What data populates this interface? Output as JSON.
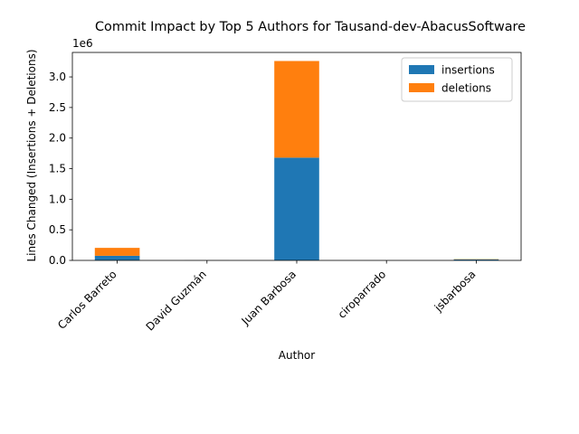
{
  "chart_data": {
    "type": "bar",
    "stacked": true,
    "title": "Commit Impact by Top 5 Authors for Tausand-dev-AbacusSoftware",
    "xlabel": "Author",
    "ylabel": "Lines Changed (Insertions + Deletions)",
    "y_offset_text": "1e6",
    "y_scale": 1000000,
    "ylim": [
      0,
      3400000
    ],
    "yticks": [
      0,
      500000,
      1000000,
      1500000,
      2000000,
      2500000,
      3000000
    ],
    "ytick_labels": [
      "0.0",
      "0.5",
      "1.0",
      "1.5",
      "2.0",
      "2.5",
      "3.0"
    ],
    "categories": [
      "Carlos Barreto",
      "David Guzmán",
      "Juan Barbosa",
      "ciroparrado",
      "jsbarbosa"
    ],
    "series": [
      {
        "name": "insertions",
        "color": "#1f77b4",
        "values": [
          75000,
          1000,
          1680000,
          500,
          15000
        ]
      },
      {
        "name": "deletions",
        "color": "#ff7f0e",
        "values": [
          130000,
          500,
          1580000,
          200,
          5000
        ]
      }
    ],
    "legend_position": "upper right",
    "grid": false
  }
}
